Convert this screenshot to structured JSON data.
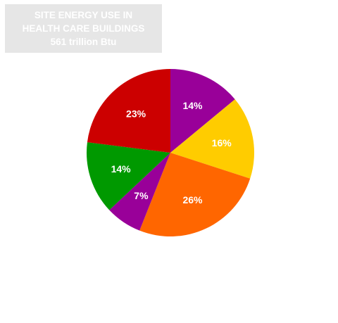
{
  "title": {
    "line1": "SITE ENERGY USE IN",
    "line2": "HEALTH CARE BUILDINGS",
    "line3": "561 trillion Btu"
  },
  "chart_data": {
    "type": "pie",
    "title": "SITE ENERGY USE IN HEALTH CARE BUILDINGS 561 trillion Btu",
    "start_angle_deg": 0,
    "direction": "clockwise",
    "slices": [
      {
        "label": "14%",
        "value": 14,
        "color": "#990099"
      },
      {
        "label": "16%",
        "value": 16,
        "color": "#ffcc00"
      },
      {
        "label": "26%",
        "value": 26,
        "color": "#ff6600"
      },
      {
        "label": "7%",
        "value": 7,
        "color": "#990099"
      },
      {
        "label": "14%",
        "value": 14,
        "color": "#009900"
      },
      {
        "label": "23%",
        "value": 23,
        "color": "#cc0000"
      }
    ]
  }
}
